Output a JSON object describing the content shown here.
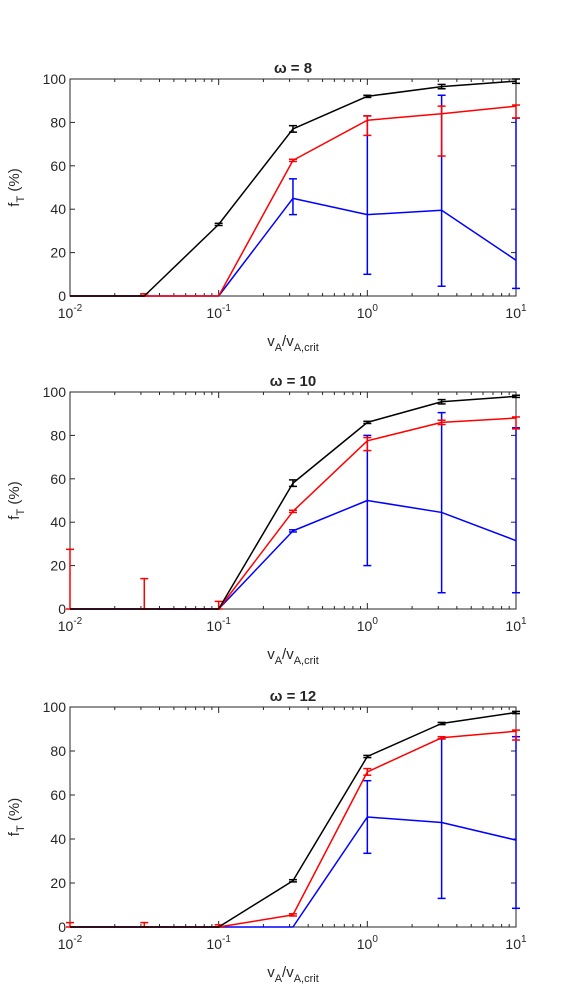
{
  "chart_data": [
    {
      "type": "line",
      "title": "ω = 8",
      "xlabel": {
        "base": "v",
        "sub": "A",
        "mid": "/v",
        "sub2": "A,crit"
      },
      "ylabel": {
        "base": "f",
        "sub": "T",
        "rest": " (%)"
      },
      "xscale": "log",
      "xlim": [
        0.01,
        10
      ],
      "ylim": [
        0,
        100
      ],
      "yticks": [
        0,
        20,
        40,
        60,
        80,
        100
      ],
      "xticks": [
        {
          "value": 0.01,
          "base": "10",
          "exp": "-2"
        },
        {
          "value": 0.1,
          "base": "10",
          "exp": "-1"
        },
        {
          "value": 1,
          "base": "10",
          "exp": "0"
        },
        {
          "value": 10,
          "base": "10",
          "exp": "1"
        }
      ],
      "x": [
        0.01,
        0.0316,
        0.1,
        0.316,
        1,
        3.16,
        10
      ],
      "grid": false,
      "series": [
        {
          "color": "#000000",
          "values": [
            0,
            0,
            33,
            77,
            92,
            96.5,
            99
          ],
          "err_low": [
            0,
            0,
            0.5,
            1.5,
            0.5,
            1,
            1
          ],
          "err_high": [
            0,
            0,
            0.5,
            1.5,
            0.5,
            1,
            1
          ]
        },
        {
          "color": "#ff0000",
          "values": [
            0,
            0,
            0,
            62.5,
            81,
            84,
            87.5
          ],
          "err_low": [
            0,
            0,
            0,
            0.5,
            7,
            19.5,
            5.5
          ],
          "err_high": [
            0,
            1,
            0,
            0.5,
            2,
            3.5,
            0.5
          ]
        },
        {
          "color": "#0000ff",
          "values": [
            0,
            0,
            0,
            45,
            37.5,
            39.5,
            16.5
          ],
          "err_low": [
            0,
            0,
            0,
            7.5,
            27.5,
            35,
            13
          ],
          "err_high": [
            0,
            0,
            0,
            9,
            45.5,
            53,
            65.5
          ]
        }
      ]
    },
    {
      "type": "line",
      "title": "ω = 10",
      "xlabel": {
        "base": "v",
        "sub": "A",
        "mid": "/v",
        "sub2": "A,crit"
      },
      "ylabel": {
        "base": "f",
        "sub": "T",
        "rest": " (%)"
      },
      "xscale": "log",
      "xlim": [
        0.01,
        10
      ],
      "ylim": [
        0,
        100
      ],
      "yticks": [
        0,
        20,
        40,
        60,
        80,
        100
      ],
      "xticks": [
        {
          "value": 0.01,
          "base": "10",
          "exp": "-2"
        },
        {
          "value": 0.1,
          "base": "10",
          "exp": "-1"
        },
        {
          "value": 1,
          "base": "10",
          "exp": "0"
        },
        {
          "value": 10,
          "base": "10",
          "exp": "1"
        }
      ],
      "x": [
        0.01,
        0.0316,
        0.1,
        0.316,
        1,
        3.16,
        10
      ],
      "grid": false,
      "series": [
        {
          "color": "#000000",
          "values": [
            0,
            0,
            0,
            58,
            86,
            95.5,
            98
          ],
          "err_low": [
            0,
            0,
            0,
            1.5,
            0.5,
            1,
            0.5
          ],
          "err_high": [
            0,
            0,
            0,
            1.5,
            0.5,
            1,
            0.5
          ]
        },
        {
          "color": "#ff0000",
          "values": [
            0,
            0,
            0,
            45,
            77.5,
            86,
            88
          ],
          "err_low": [
            0,
            0,
            0,
            0.5,
            4.5,
            1,
            5
          ],
          "err_high": [
            27.5,
            14,
            3.5,
            0.5,
            1.5,
            1,
            0.5
          ]
        },
        {
          "color": "#0000ff",
          "values": [
            0,
            0,
            0,
            36,
            50,
            44.5,
            31.5
          ],
          "err_low": [
            0,
            0,
            0,
            0.5,
            30,
            37,
            24
          ],
          "err_high": [
            0,
            0,
            0,
            0.5,
            30,
            46,
            52
          ]
        }
      ]
    },
    {
      "type": "line",
      "title": "ω = 12",
      "xlabel": {
        "base": "v",
        "sub": "A",
        "mid": "/v",
        "sub2": "A,crit"
      },
      "ylabel": {
        "base": "f",
        "sub": "T",
        "rest": " (%)"
      },
      "xscale": "log",
      "xlim": [
        0.01,
        10
      ],
      "ylim": [
        0,
        100
      ],
      "yticks": [
        0,
        20,
        40,
        60,
        80,
        100
      ],
      "xticks": [
        {
          "value": 0.01,
          "base": "10",
          "exp": "-2"
        },
        {
          "value": 0.1,
          "base": "10",
          "exp": "-1"
        },
        {
          "value": 1,
          "base": "10",
          "exp": "0"
        },
        {
          "value": 10,
          "base": "10",
          "exp": "1"
        }
      ],
      "x": [
        0.01,
        0.0316,
        0.1,
        0.316,
        1,
        3.16,
        10
      ],
      "grid": false,
      "series": [
        {
          "color": "#000000",
          "values": [
            0,
            0,
            0,
            21,
            77.5,
            92.5,
            97.5
          ],
          "err_low": [
            0,
            0,
            0,
            0.5,
            0.5,
            0.5,
            0.5
          ],
          "err_high": [
            0,
            0,
            0,
            0.5,
            0.5,
            0.5,
            0.5
          ]
        },
        {
          "color": "#ff0000",
          "values": [
            0,
            0,
            0,
            5.5,
            70.5,
            86,
            89
          ],
          "err_low": [
            0,
            0,
            0,
            0.5,
            1.5,
            0.5,
            4
          ],
          "err_high": [
            2,
            2,
            1,
            0.5,
            1.5,
            0.5,
            0.5
          ]
        },
        {
          "color": "#0000ff",
          "values": [
            0,
            0,
            0,
            0,
            50,
            47.5,
            39.5
          ],
          "err_low": [
            0,
            0,
            0,
            0,
            16.5,
            34.5,
            31
          ],
          "err_high": [
            0,
            0,
            0,
            0,
            16.5,
            38,
            47
          ]
        }
      ]
    }
  ]
}
